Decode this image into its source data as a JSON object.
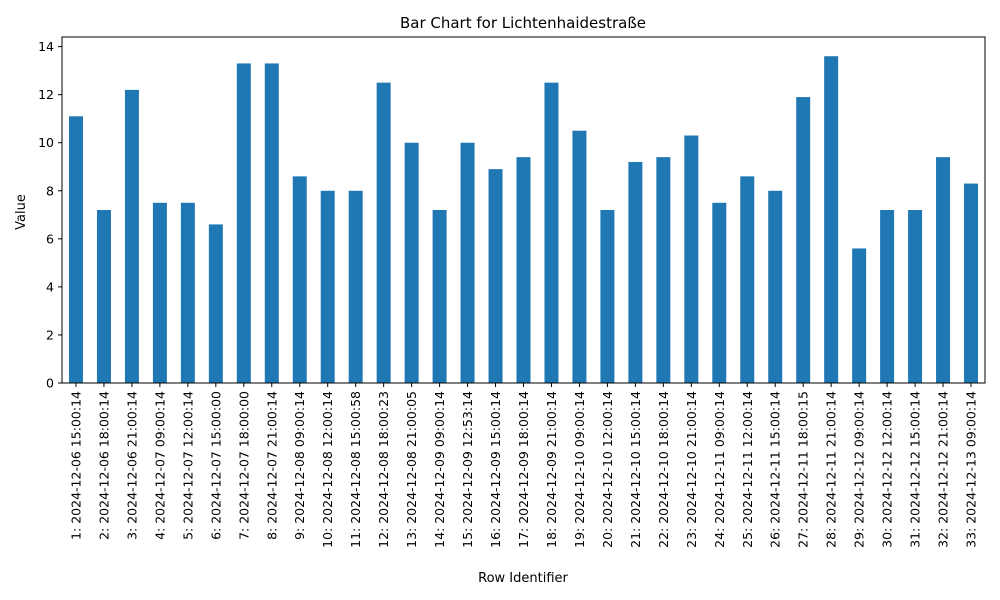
{
  "chart_data": {
    "type": "bar",
    "title": "Bar Chart for Lichtenhaidestraße",
    "xlabel": "Row Identifier",
    "ylabel": "Value",
    "ylim": [
      0,
      14.4
    ],
    "yticks": [
      0,
      2,
      4,
      6,
      8,
      10,
      12,
      14
    ],
    "bar_color": "#1f77b4",
    "grid": false,
    "legend": "none",
    "categories": [
      "1: 2024-12-06 15:00:14",
      "2: 2024-12-06 18:00:14",
      "3: 2024-12-06 21:00:14",
      "4: 2024-12-07 09:00:14",
      "5: 2024-12-07 12:00:14",
      "6: 2024-12-07 15:00:00",
      "7: 2024-12-07 18:00:00",
      "8: 2024-12-07 21:00:14",
      "9: 2024-12-08 09:00:14",
      "10: 2024-12-08 12:00:14",
      "11: 2024-12-08 15:00:58",
      "12: 2024-12-08 18:00:23",
      "13: 2024-12-08 21:00:05",
      "14: 2024-12-09 09:00:14",
      "15: 2024-12-09 12:53:14",
      "16: 2024-12-09 15:00:14",
      "17: 2024-12-09 18:00:14",
      "18: 2024-12-09 21:00:14",
      "19: 2024-12-10 09:00:14",
      "20: 2024-12-10 12:00:14",
      "21: 2024-12-10 15:00:14",
      "22: 2024-12-10 18:00:14",
      "23: 2024-12-10 21:00:14",
      "24: 2024-12-11 09:00:14",
      "25: 2024-12-11 12:00:14",
      "26: 2024-12-11 15:00:14",
      "27: 2024-12-11 18:00:15",
      "28: 2024-12-11 21:00:14",
      "29: 2024-12-12 09:00:14",
      "30: 2024-12-12 12:00:14",
      "31: 2024-12-12 15:00:14",
      "32: 2024-12-12 21:00:14",
      "33: 2024-12-13 09:00:14"
    ],
    "values": [
      11.1,
      7.2,
      12.2,
      7.5,
      7.5,
      6.6,
      13.3,
      13.3,
      8.6,
      8.0,
      8.0,
      12.5,
      10.0,
      7.2,
      10.0,
      8.9,
      9.4,
      12.5,
      10.5,
      7.2,
      9.2,
      9.4,
      10.3,
      7.5,
      8.6,
      8.0,
      11.9,
      13.6,
      5.6,
      7.2,
      7.2,
      9.4,
      8.3
    ]
  }
}
